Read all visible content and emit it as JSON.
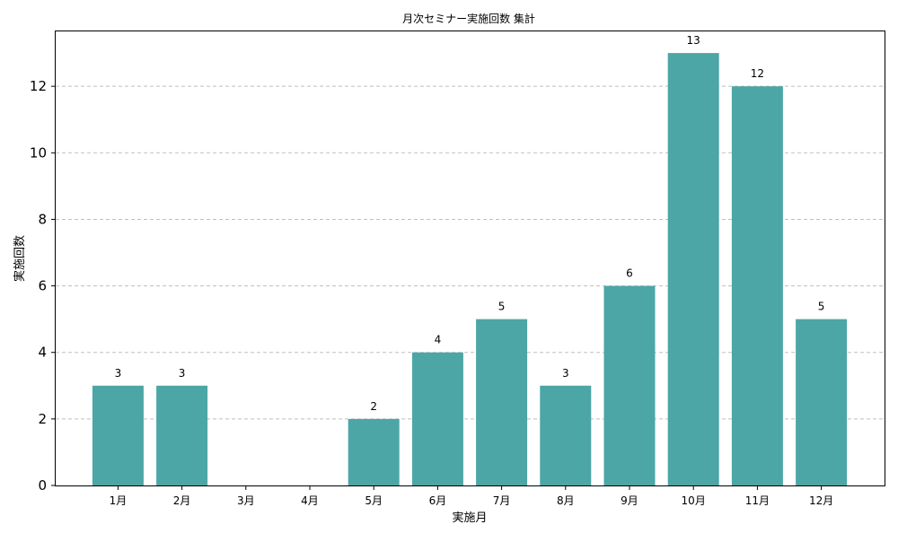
{
  "chart_data": {
    "type": "bar",
    "title": "月次セミナー実施回数 集計",
    "xlabel": "実施月",
    "ylabel": "実施回数",
    "categories": [
      "1月",
      "2月",
      "3月",
      "4月",
      "5月",
      "6月",
      "7月",
      "8月",
      "9月",
      "10月",
      "11月",
      "12月"
    ],
    "values": [
      3,
      3,
      0,
      0,
      2,
      4,
      5,
      3,
      6,
      13,
      12,
      5
    ],
    "data_labels": [
      "3",
      "3",
      "",
      "",
      "2",
      "4",
      "5",
      "3",
      "6",
      "13",
      "12",
      "5"
    ],
    "yticks": [
      0,
      2,
      4,
      6,
      8,
      10,
      12
    ],
    "ylim": [
      0,
      13.65
    ],
    "grid": "y-dashed",
    "bar_color": "#4ca6a6"
  }
}
